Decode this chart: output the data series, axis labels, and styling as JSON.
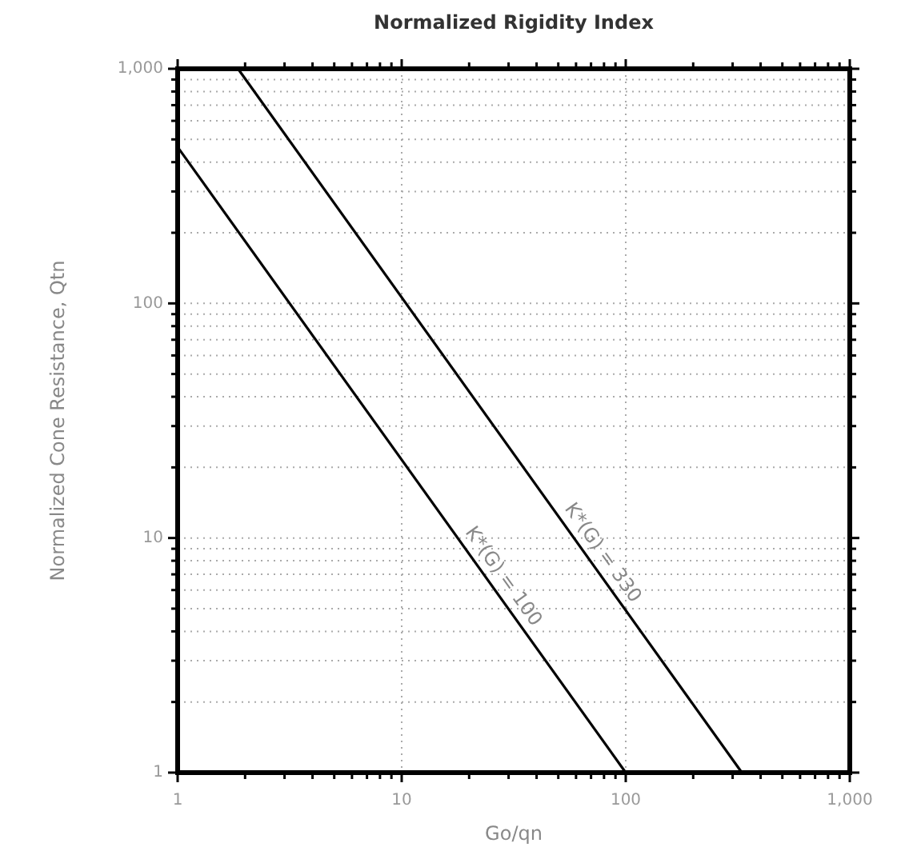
{
  "chart_data": {
    "type": "line",
    "title": "Normalized Rigidity Index",
    "xlabel": "Go/qn",
    "ylabel": "Normalized Cone Resistance, Qtn",
    "log": "xy",
    "grid": true,
    "marker": "none",
    "line_style": "solid",
    "xlim": [
      1,
      1000
    ],
    "ylim": [
      1,
      1000
    ],
    "xticks": [
      1,
      {
        "value": 2,
        "label": null
      },
      {
        "value": 3,
        "label": null
      },
      {
        "value": 4,
        "label": null
      },
      {
        "value": 5,
        "label": null
      },
      {
        "value": 6,
        "label": null
      },
      {
        "value": 7,
        "label": null
      },
      {
        "value": 8,
        "label": null
      },
      {
        "value": 9,
        "label": null
      },
      10,
      {
        "value": 20,
        "label": null
      },
      {
        "value": 30,
        "label": null
      },
      {
        "value": 40,
        "label": null
      },
      {
        "value": 50,
        "label": null
      },
      {
        "value": 60,
        "label": null
      },
      {
        "value": 70,
        "label": null
      },
      {
        "value": 80,
        "label": null
      },
      {
        "value": 90,
        "label": null
      },
      100,
      {
        "value": 200,
        "label": null
      },
      {
        "value": 300,
        "label": null
      },
      {
        "value": 400,
        "label": null
      },
      {
        "value": 500,
        "label": null
      },
      {
        "value": 600,
        "label": null
      },
      {
        "value": 700,
        "label": null
      },
      {
        "value": 800,
        "label": null
      },
      {
        "value": 900,
        "label": null
      },
      {
        "value": 1000,
        "label": "1,000"
      }
    ],
    "yticks": [
      1,
      {
        "value": 2,
        "label": null
      },
      {
        "value": 3,
        "label": null
      },
      {
        "value": 4,
        "label": null
      },
      {
        "value": 5,
        "label": null
      },
      {
        "value": 6,
        "label": null
      },
      {
        "value": 7,
        "label": null
      },
      {
        "value": 8,
        "label": null
      },
      {
        "value": 9,
        "label": null
      },
      {
        "value": 10,
        "label": "10"
      },
      {
        "value": 20,
        "label": null
      },
      {
        "value": 30,
        "label": null
      },
      {
        "value": 40,
        "label": null
      },
      {
        "value": 50,
        "label": null
      },
      {
        "value": 60,
        "label": null
      },
      {
        "value": 70,
        "label": null
      },
      {
        "value": 80,
        "label": null
      },
      {
        "value": 90,
        "label": null
      },
      {
        "value": 100,
        "label": "100"
      },
      {
        "value": 200,
        "label": null
      },
      {
        "value": 300,
        "label": null
      },
      {
        "value": 400,
        "label": null
      },
      {
        "value": 500,
        "label": null
      },
      {
        "value": 600,
        "label": null
      },
      {
        "value": 700,
        "label": null
      },
      {
        "value": 800,
        "label": null
      },
      {
        "value": 900,
        "label": null
      },
      {
        "value": 1000,
        "label": "1,000"
      }
    ],
    "series": [
      {
        "name": "K*(G) = 100",
        "color": "#000000",
        "x": [
          1,
          100
        ],
        "values": [
          464,
          1
        ]
      },
      {
        "name": "K*(G) = 330",
        "color": "#000000",
        "x": [
          1.86,
          330
        ],
        "values": [
          1000,
          1
        ]
      }
    ]
  }
}
